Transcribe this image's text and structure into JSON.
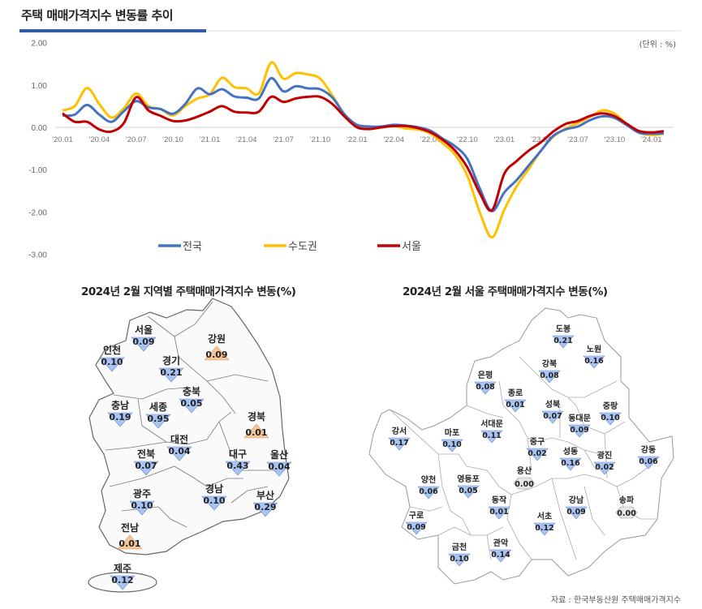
{
  "header": {
    "title": "주택 매매가격지수 변동률 추이",
    "unit": "(단위 : %)"
  },
  "chart_data": [
    {
      "type": "line",
      "title": "",
      "ylim": [
        -3,
        2
      ],
      "yticks": [
        "2.00",
        "1.00",
        "0.00",
        "-1.00",
        "-2.00",
        "-3.00"
      ],
      "ytick_values": [
        2,
        1,
        0,
        -1,
        -2,
        -3
      ],
      "xtick_labels": [
        "'20.01",
        "'20.04",
        "'20.07",
        "'20.10",
        "'21.01",
        "'21.04",
        "'21.07",
        "'21.10",
        "'22.01",
        "'22.04",
        "'22.07",
        "'22.10",
        "'23.01",
        "'23.04",
        "'23.07",
        "'23.10",
        "'24.01"
      ],
      "x_start": "2020-01",
      "x_end": "2024-02",
      "x_interval": "monthly",
      "legend_position": "bottom",
      "grid": false,
      "series": [
        {
          "name": "전국",
          "color": "#4472c4",
          "values": [
            0.28,
            0.3,
            0.53,
            0.3,
            0.13,
            0.38,
            0.62,
            0.47,
            0.43,
            0.32,
            0.55,
            0.92,
            0.78,
            0.9,
            0.73,
            0.7,
            0.68,
            1.16,
            0.85,
            0.97,
            0.92,
            0.9,
            0.7,
            0.3,
            0.06,
            0.02,
            0.02,
            0.06,
            0.04,
            0.0,
            -0.08,
            -0.27,
            -0.45,
            -0.75,
            -1.44,
            -1.98,
            -1.54,
            -1.25,
            -0.9,
            -0.55,
            -0.2,
            -0.05,
            0.02,
            0.17,
            0.26,
            0.22,
            0.05,
            -0.13,
            -0.15,
            -0.14
          ]
        },
        {
          "name": "수도권",
          "color": "#ffc000",
          "values": [
            0.4,
            0.5,
            0.93,
            0.55,
            0.23,
            0.45,
            0.8,
            0.5,
            0.43,
            0.28,
            0.5,
            0.68,
            0.78,
            1.17,
            0.95,
            0.92,
            0.8,
            1.53,
            1.15,
            1.28,
            1.25,
            1.15,
            0.75,
            0.3,
            0.05,
            -0.02,
            0.0,
            0.03,
            -0.03,
            -0.05,
            -0.15,
            -0.38,
            -0.65,
            -1.15,
            -2.0,
            -2.6,
            -1.95,
            -1.4,
            -0.98,
            -0.55,
            -0.22,
            -0.03,
            0.1,
            0.25,
            0.4,
            0.32,
            0.07,
            -0.13,
            -0.18,
            -0.15
          ]
        },
        {
          "name": "서울",
          "color": "#c00000",
          "values": [
            0.33,
            0.13,
            0.13,
            -0.05,
            -0.1,
            0.1,
            0.71,
            0.4,
            0.27,
            0.15,
            0.16,
            0.25,
            0.37,
            0.5,
            0.37,
            0.35,
            0.37,
            0.72,
            0.6,
            0.68,
            0.72,
            0.72,
            0.55,
            0.25,
            0.0,
            -0.04,
            0.0,
            0.03,
            0.03,
            -0.02,
            -0.12,
            -0.3,
            -0.55,
            -0.95,
            -1.55,
            -1.96,
            -1.1,
            -0.8,
            -0.55,
            -0.35,
            -0.1,
            0.08,
            0.15,
            0.27,
            0.33,
            0.26,
            0.08,
            -0.09,
            -0.12,
            -0.09
          ]
        }
      ]
    }
  ],
  "regional_map": {
    "title": "2024년 2월 지역별 주택매매가격지수 변동(%)",
    "colors": {
      "up": "#f4c49a",
      "down": "#a9c4f2",
      "flat": "#e6e6e6"
    },
    "regions": [
      {
        "name": "서울",
        "value": "0.09",
        "dir": "down"
      },
      {
        "name": "인천",
        "value": "0.10",
        "dir": "down"
      },
      {
        "name": "강원",
        "value": "0.09",
        "dir": "up"
      },
      {
        "name": "경기",
        "value": "0.21",
        "dir": "down"
      },
      {
        "name": "충북",
        "value": "0.05",
        "dir": "down"
      },
      {
        "name": "충남",
        "value": "0.19",
        "dir": "down"
      },
      {
        "name": "세종",
        "value": "0.95",
        "dir": "down"
      },
      {
        "name": "경북",
        "value": "0.01",
        "dir": "up"
      },
      {
        "name": "대전",
        "value": "0.04",
        "dir": "down"
      },
      {
        "name": "전북",
        "value": "0.07",
        "dir": "down"
      },
      {
        "name": "대구",
        "value": "0.43",
        "dir": "down"
      },
      {
        "name": "울산",
        "value": "0.04",
        "dir": "down"
      },
      {
        "name": "경남",
        "value": "0.10",
        "dir": "down"
      },
      {
        "name": "광주",
        "value": "0.10",
        "dir": "down"
      },
      {
        "name": "부산",
        "value": "0.29",
        "dir": "down"
      },
      {
        "name": "전남",
        "value": "0.01",
        "dir": "up"
      },
      {
        "name": "제주",
        "value": "0.12",
        "dir": "down"
      }
    ]
  },
  "seoul_map": {
    "title": "2024년 2월 서울 주택매매가격지수 변동(%)",
    "districts": [
      {
        "name": "도봉",
        "value": "0.21",
        "dir": "down"
      },
      {
        "name": "노원",
        "value": "0.16",
        "dir": "down"
      },
      {
        "name": "강북",
        "value": "0.08",
        "dir": "down"
      },
      {
        "name": "은평",
        "value": "0.08",
        "dir": "down"
      },
      {
        "name": "종로",
        "value": "0.01",
        "dir": "down"
      },
      {
        "name": "성북",
        "value": "0.07",
        "dir": "down"
      },
      {
        "name": "동대문",
        "value": "0.09",
        "dir": "down"
      },
      {
        "name": "중랑",
        "value": "0.10",
        "dir": "down"
      },
      {
        "name": "서대문",
        "value": "0.11",
        "dir": "down"
      },
      {
        "name": "강서",
        "value": "0.17",
        "dir": "down"
      },
      {
        "name": "마포",
        "value": "0.10",
        "dir": "down"
      },
      {
        "name": "중구",
        "value": "0.02",
        "dir": "down"
      },
      {
        "name": "성동",
        "value": "0.16",
        "dir": "down"
      },
      {
        "name": "광진",
        "value": "0.02",
        "dir": "down"
      },
      {
        "name": "강동",
        "value": "0.06",
        "dir": "down"
      },
      {
        "name": "용산",
        "value": "0.00",
        "dir": "flat"
      },
      {
        "name": "양천",
        "value": "0.06",
        "dir": "down"
      },
      {
        "name": "영등포",
        "value": "0.05",
        "dir": "down"
      },
      {
        "name": "동작",
        "value": "0.01",
        "dir": "down"
      },
      {
        "name": "강남",
        "value": "0.09",
        "dir": "down"
      },
      {
        "name": "송파",
        "value": "0.00",
        "dir": "flat"
      },
      {
        "name": "구로",
        "value": "0.09",
        "dir": "down"
      },
      {
        "name": "서초",
        "value": "0.12",
        "dir": "down"
      },
      {
        "name": "관악",
        "value": "0.14",
        "dir": "down"
      },
      {
        "name": "금천",
        "value": "0.10",
        "dir": "down"
      }
    ]
  },
  "source": "자료 : 한국부동산원 주택매매가격지수"
}
